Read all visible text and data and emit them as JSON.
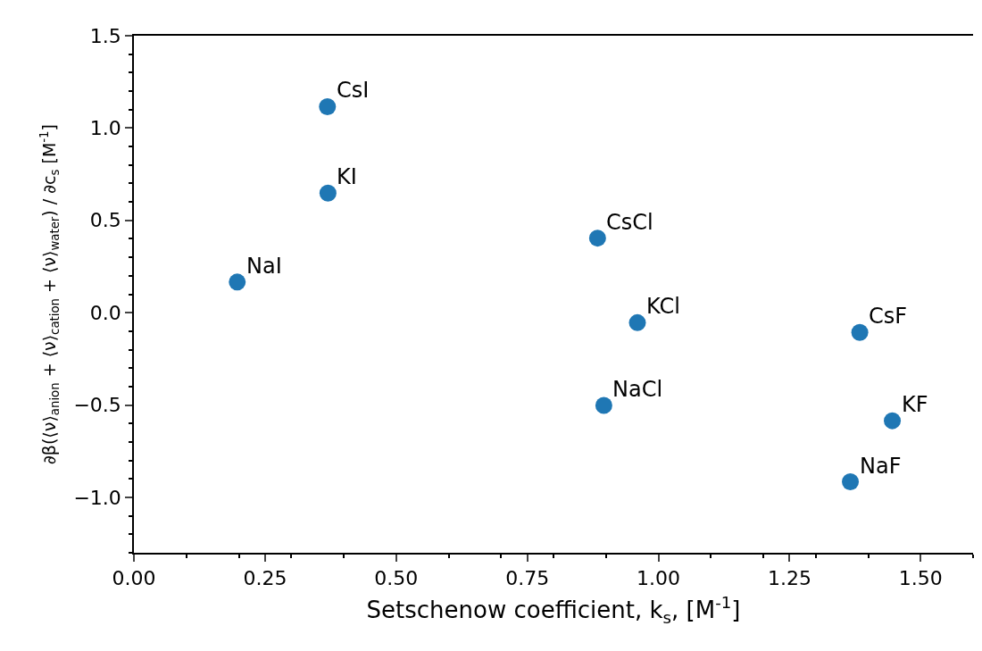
{
  "chart_data": {
    "type": "scatter",
    "xlabel": "Setschenow coefficient, k$_{s}$, [M$^{-1}$]",
    "ylabel": "∂β(⟨ν⟩$_{anion}$ + ⟨ν⟩$_{cation}$ + ⟨ν⟩$_{water}$) / ∂c$_{s}$ [M$^{-1}$]",
    "x": [
      0.369,
      0.37,
      0.197,
      0.884,
      0.96,
      0.896,
      1.384,
      1.446,
      1.366
    ],
    "series": [
      {
        "color": "#1f77b4",
        "values": [
          1.116,
          0.648,
          0.166,
          0.404,
          -0.054,
          -0.502,
          -0.107,
          -0.585,
          -0.916
        ]
      }
    ],
    "annotations": [
      {
        "text": "CsI",
        "x": 0.369,
        "y": 1.116
      },
      {
        "text": "KI",
        "x": 0.37,
        "y": 0.648
      },
      {
        "text": "NaI",
        "x": 0.197,
        "y": 0.166
      },
      {
        "text": "CsCl",
        "x": 0.884,
        "y": 0.404
      },
      {
        "text": "KCl",
        "x": 0.96,
        "y": -0.054
      },
      {
        "text": "NaCl",
        "x": 0.896,
        "y": -0.502
      },
      {
        "text": "CsF",
        "x": 1.384,
        "y": -0.107
      },
      {
        "text": "KF",
        "x": 1.446,
        "y": -0.585
      },
      {
        "text": "NaF",
        "x": 1.366,
        "y": -0.916
      }
    ],
    "xlim": [
      0,
      1.6
    ],
    "xticks": [
      {
        "value": 0,
        "label": "0.00"
      },
      0.25,
      {
        "value": 0.5,
        "label": "0.50"
      },
      0.75,
      {
        "value": 1,
        "label": "1.00"
      },
      1.25,
      {
        "value": 1.5,
        "label": "1.50"
      }
    ],
    "ylim": [
      -1.3,
      1.5
    ],
    "yticks": [
      {
        "value": -1,
        "label": "−1.0"
      },
      {
        "value": -0.5,
        "label": "−0.5"
      },
      {
        "value": 0,
        "label": "0.0"
      },
      0.5,
      {
        "value": 1,
        "label": "1.0"
      },
      1.5
    ],
    "marker": "circle"
  }
}
